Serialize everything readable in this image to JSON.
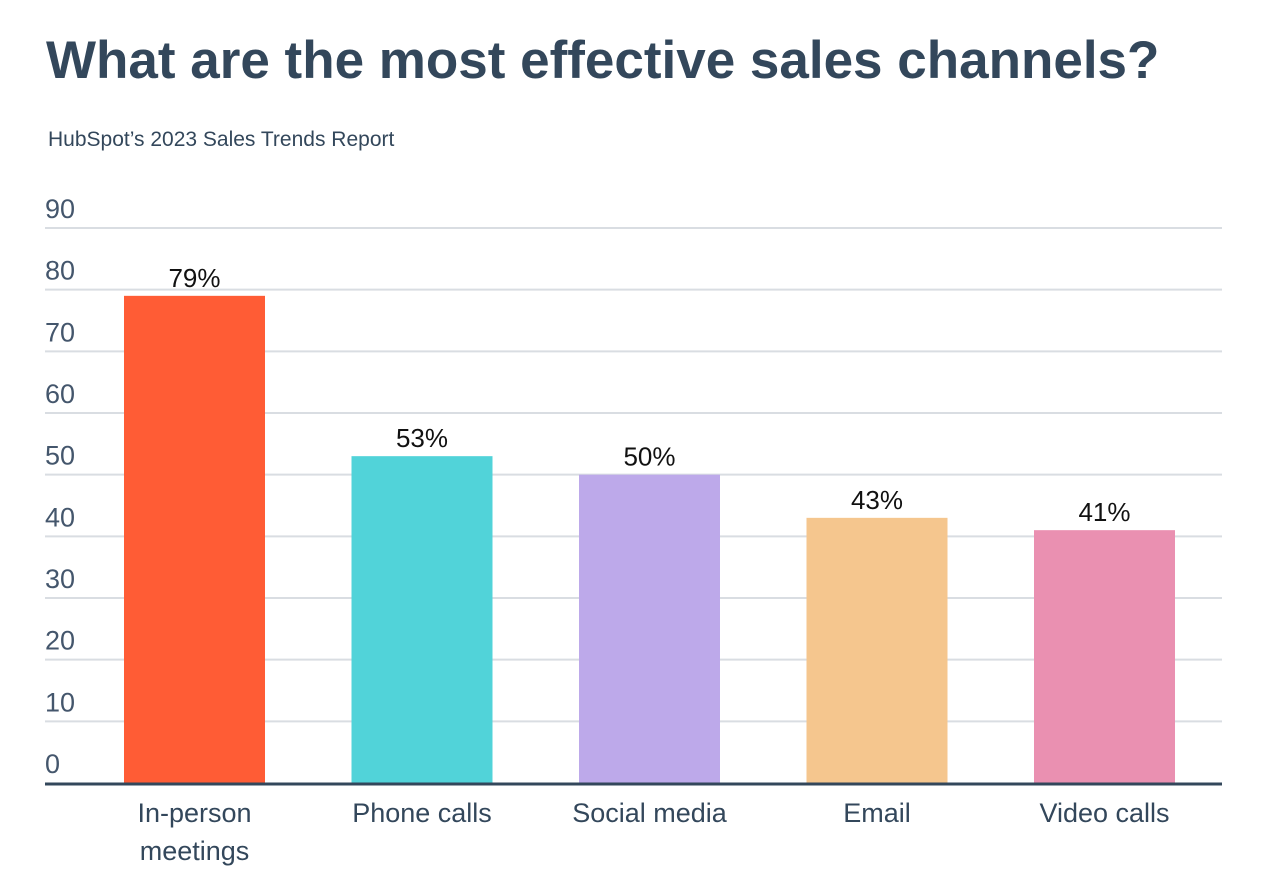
{
  "chart_data": {
    "type": "bar",
    "title": "What are the most effective sales channels?",
    "subtitle": "HubSpot’s 2023 Sales Trends Report",
    "categories": [
      [
        "In-person",
        "meetings"
      ],
      [
        "Phone calls"
      ],
      [
        "Social media"
      ],
      [
        "Email"
      ],
      [
        "Video calls"
      ]
    ],
    "values": [
      79,
      53,
      50,
      43,
      41
    ],
    "data_labels": [
      "79%",
      "53%",
      "50%",
      "43%",
      "41%"
    ],
    "colors": [
      "#ff5c35",
      "#51d3d9",
      "#bda9ea",
      "#f5c68e",
      "#ea90b1"
    ],
    "ylim": [
      0,
      90
    ],
    "yticks": [
      0,
      10,
      20,
      30,
      40,
      50,
      60,
      70,
      80,
      90
    ],
    "grid": true,
    "xlabel": "",
    "ylabel": ""
  }
}
